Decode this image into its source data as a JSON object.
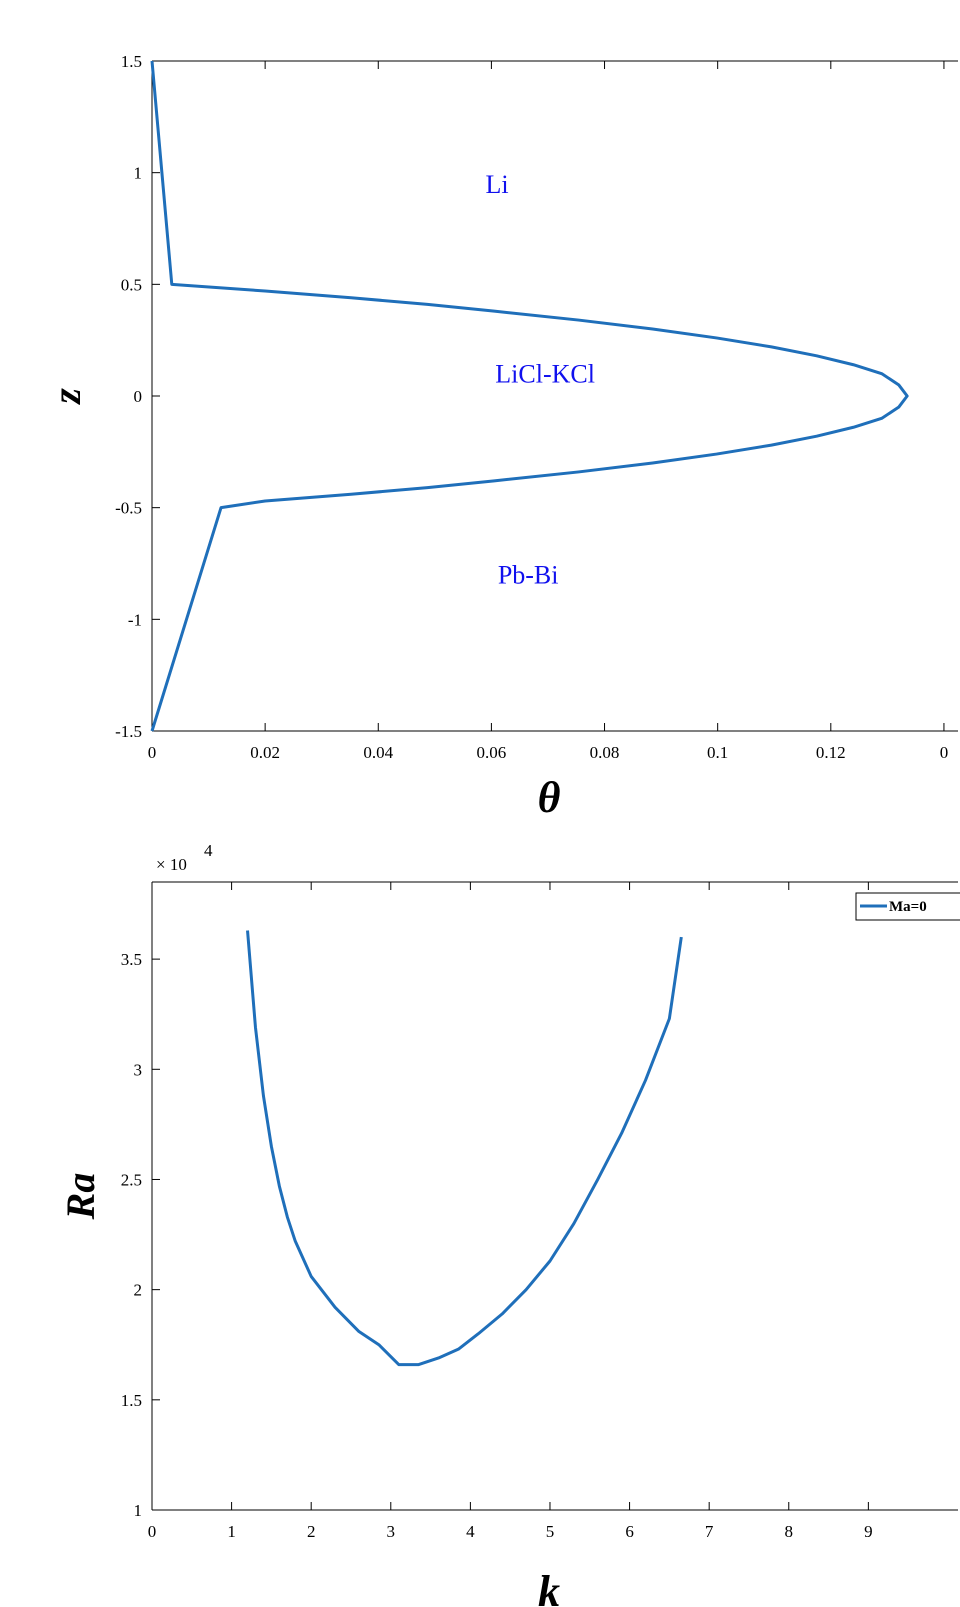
{
  "chart_data": [
    {
      "type": "line",
      "xlabel": "θ",
      "ylabel": "z",
      "xlim": [
        0,
        0.134
      ],
      "ylim": [
        -1.5,
        1.5
      ],
      "xticks": [
        "0",
        "0.02",
        "0.04",
        "0.06",
        "0.08",
        "0.1",
        "0.12",
        "0"
      ],
      "yticks": [
        "1.5",
        "1",
        "0.5",
        "0",
        "-0.5",
        "-1",
        "-1.5"
      ],
      "series": [
        {
          "color": "#1f6fba",
          "x": [
            0.0,
            0.0035,
            0.02,
            0.0352,
            0.0487,
            0.0605,
            0.0754,
            0.0885,
            0.0998,
            0.1095,
            0.1175,
            0.124,
            0.129,
            0.132,
            0.1335,
            0.132,
            0.129,
            0.124,
            0.1175,
            0.1095,
            0.0998,
            0.0885,
            0.0754,
            0.0605,
            0.0487,
            0.0352,
            0.02,
            0.0122,
            0.0
          ],
          "y": [
            1.5,
            0.5,
            0.47,
            0.44,
            0.41,
            0.38,
            0.34,
            0.3,
            0.26,
            0.22,
            0.18,
            0.14,
            0.1,
            0.05,
            0.0,
            -0.05,
            -0.1,
            -0.14,
            -0.18,
            -0.22,
            -0.26,
            -0.3,
            -0.34,
            -0.38,
            -0.41,
            -0.44,
            -0.47,
            -0.5,
            -1.5
          ]
        }
      ],
      "annotations": [
        {
          "text": "Li",
          "x": 0.061,
          "y": 0.91
        },
        {
          "text": "LiCl-KCl",
          "x": 0.0695,
          "y": 0.06
        },
        {
          "text": "Pb-Bi",
          "x": 0.0665,
          "y": -0.84
        }
      ],
      "grid": false,
      "box": true
    },
    {
      "type": "line",
      "xlabel": "k",
      "ylabel": "Ra",
      "y_multiplier": "× 10",
      "y_multiplier_exp": "4",
      "xlim": [
        0,
        9.9
      ],
      "ylim": [
        1,
        3.85
      ],
      "xticks": [
        "0",
        "1",
        "2",
        "3",
        "4",
        "5",
        "6",
        "7",
        "8",
        "9"
      ],
      "yticks": [
        "3.5",
        "3",
        "2.5",
        "2",
        "1.5",
        "1"
      ],
      "series": [
        {
          "name": "Ma=0",
          "color": "#1f6fba",
          "x": [
            1.2,
            1.3,
            1.4,
            1.5,
            1.6,
            1.7,
            1.8,
            2.0,
            2.3,
            2.6,
            2.85,
            3.1,
            3.35,
            3.6,
            3.85,
            4.1,
            4.4,
            4.7,
            5.0,
            5.3,
            5.6,
            5.9,
            6.2,
            6.5,
            6.65
          ],
          "y": [
            3.63,
            3.19,
            2.88,
            2.65,
            2.47,
            2.33,
            2.22,
            2.06,
            1.92,
            1.81,
            1.75,
            1.66,
            1.66,
            1.69,
            1.73,
            1.8,
            1.89,
            2.0,
            2.13,
            2.3,
            2.5,
            2.71,
            2.95,
            3.23,
            3.6
          ]
        }
      ],
      "legend": "top-right",
      "grid": false,
      "box": true
    }
  ]
}
